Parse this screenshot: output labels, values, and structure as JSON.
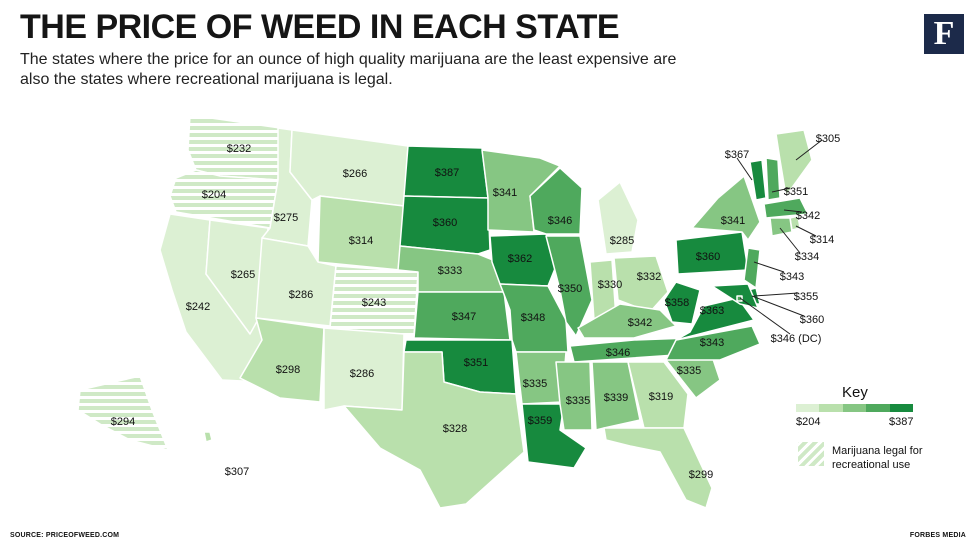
{
  "title": "THE PRICE OF WEED IN EACH STATE",
  "subtitle": "The states where the price for an ounce of high quality marijuana are the least expensive are also the states where recreational marijuana is legal.",
  "logo": "F",
  "footer": {
    "source": "SOURCE: PRICEOFWEED.COM",
    "credit": "FORBES MEDIA"
  },
  "key": {
    "title": "Key",
    "min": "$204",
    "max": "$387",
    "recreational_label": "Marijuana legal for recreational use",
    "colors": [
      "#dcf0d3",
      "#b9e0ac",
      "#86c683",
      "#4fa95d",
      "#178a3e"
    ]
  },
  "colors": {
    "c1": "#dcf0d3",
    "c2": "#b9e0ac",
    "c3": "#86c683",
    "c4": "#4fa95d",
    "c5": "#178a3e",
    "stripe": "#cfe9c6"
  },
  "states": [
    {
      "code": "WA",
      "price": "$232",
      "level": "rec"
    },
    {
      "code": "OR",
      "price": "$204",
      "level": "rec"
    },
    {
      "code": "CA",
      "price": "$242",
      "level": "c1"
    },
    {
      "code": "NV",
      "price": "$265",
      "level": "c1"
    },
    {
      "code": "ID",
      "price": "$275",
      "level": "c1"
    },
    {
      "code": "MT",
      "price": "$266",
      "level": "c1"
    },
    {
      "code": "WY",
      "price": "$314",
      "level": "c2"
    },
    {
      "code": "UT",
      "price": "$286",
      "level": "c1"
    },
    {
      "code": "CO",
      "price": "$243",
      "level": "rec"
    },
    {
      "code": "AZ",
      "price": "$298",
      "level": "c2"
    },
    {
      "code": "NM",
      "price": "$286",
      "level": "c1"
    },
    {
      "code": "ND",
      "price": "$387",
      "level": "c5"
    },
    {
      "code": "SD",
      "price": "$360",
      "level": "c5"
    },
    {
      "code": "NE",
      "price": "$333",
      "level": "c3"
    },
    {
      "code": "KS",
      "price": "$347",
      "level": "c4"
    },
    {
      "code": "OK",
      "price": "$351",
      "level": "c5"
    },
    {
      "code": "TX",
      "price": "$328",
      "level": "c2"
    },
    {
      "code": "MN",
      "price": "$341",
      "level": "c3"
    },
    {
      "code": "IA",
      "price": "$362",
      "level": "c5"
    },
    {
      "code": "MO",
      "price": "$348",
      "level": "c4"
    },
    {
      "code": "AR",
      "price": "$335",
      "level": "c3"
    },
    {
      "code": "LA",
      "price": "$359",
      "level": "c5"
    },
    {
      "code": "WI",
      "price": "$346",
      "level": "c4"
    },
    {
      "code": "IL",
      "price": "$350",
      "level": "c4"
    },
    {
      "code": "MI",
      "price": "$285",
      "level": "c1"
    },
    {
      "code": "IN",
      "price": "$330",
      "level": "c2"
    },
    {
      "code": "OH",
      "price": "$332",
      "level": "c2"
    },
    {
      "code": "KY",
      "price": "$342",
      "level": "c3"
    },
    {
      "code": "TN",
      "price": "$346",
      "level": "c4"
    },
    {
      "code": "MS",
      "price": "$335",
      "level": "c3"
    },
    {
      "code": "AL",
      "price": "$339",
      "level": "c3"
    },
    {
      "code": "GA",
      "price": "$319",
      "level": "c2"
    },
    {
      "code": "FL",
      "price": "$299",
      "level": "c2"
    },
    {
      "code": "SC",
      "price": "$335",
      "level": "c3"
    },
    {
      "code": "NC",
      "price": "$343",
      "level": "c4"
    },
    {
      "code": "VA",
      "price": "$363",
      "level": "c5"
    },
    {
      "code": "WV",
      "price": "$358",
      "level": "c5"
    },
    {
      "code": "PA",
      "price": "$360",
      "level": "c5"
    },
    {
      "code": "NY",
      "price": "$341",
      "level": "c3"
    },
    {
      "code": "VT",
      "price": "$367",
      "level": "c5"
    },
    {
      "code": "NH",
      "price": "$351",
      "level": "c4"
    },
    {
      "code": "ME",
      "price": "$305",
      "level": "c2"
    },
    {
      "code": "MA",
      "price": "$342",
      "level": "c4"
    },
    {
      "code": "RI",
      "price": "$314",
      "level": "c2"
    },
    {
      "code": "CT",
      "price": "$334",
      "level": "c3"
    },
    {
      "code": "NJ",
      "price": "$343",
      "level": "c4"
    },
    {
      "code": "DE",
      "price": "$355",
      "level": "c5"
    },
    {
      "code": "MD",
      "price": "$360",
      "level": "c5"
    },
    {
      "code": "DC",
      "price": "$346 (DC)",
      "level": "c4"
    },
    {
      "code": "AK",
      "price": "$294",
      "level": "rec"
    },
    {
      "code": "HI",
      "price": "$307",
      "level": "c2"
    }
  ]
}
